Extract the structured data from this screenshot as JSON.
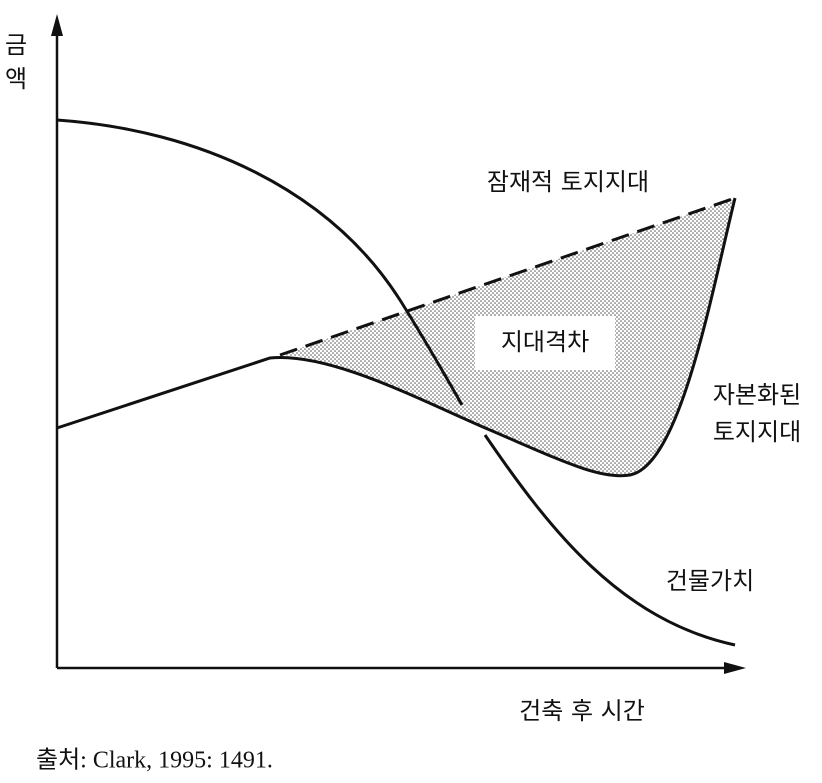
{
  "y_axis_label": [
    "금",
    "액"
  ],
  "x_axis_label": "건축 후 시간",
  "curves": {
    "potential_rent": "잠재적 토지지대",
    "rent_gap": "지대격차",
    "capitalized_rent": [
      "자본화된",
      "토지지대"
    ],
    "building_value": "건물가치"
  },
  "source": "출처: Clark, 1995: 1491."
}
